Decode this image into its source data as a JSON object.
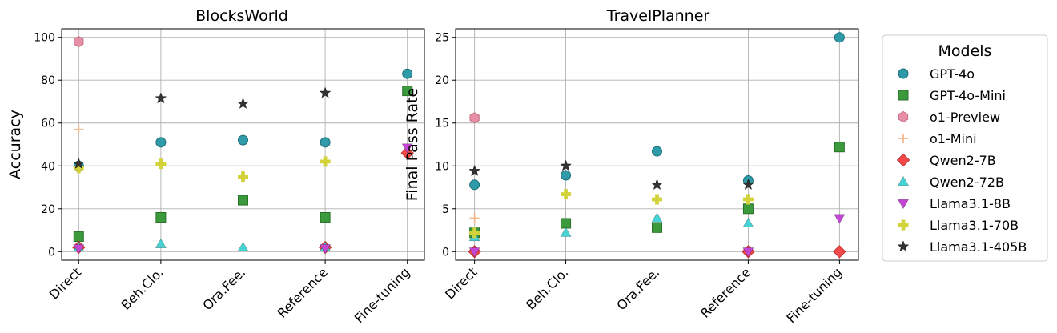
{
  "chart_data": [
    {
      "type": "scatter",
      "title": "BlocksWorld",
      "xlabel": "",
      "ylabel": "Accuracy",
      "categories": [
        "Direct",
        "Beh.Clo.",
        "Ora.Fee.",
        "Reference",
        "Fine-tuning"
      ],
      "ylim": [
        -4,
        104
      ],
      "yticks": [
        0,
        20,
        40,
        60,
        80,
        100
      ],
      "grid": true,
      "series": [
        {
          "name": "GPT-4o",
          "values": [
            40,
            51,
            52,
            51,
            83
          ]
        },
        {
          "name": "GPT-4o-Mini",
          "values": [
            7,
            16,
            24,
            16,
            75
          ]
        },
        {
          "name": "o1-Preview",
          "values": [
            98,
            null,
            null,
            null,
            null
          ]
        },
        {
          "name": "o1-Mini",
          "values": [
            57,
            null,
            null,
            null,
            null
          ]
        },
        {
          "name": "Qwen2-7B",
          "values": [
            2,
            null,
            null,
            2,
            46
          ]
        },
        {
          "name": "Qwen2-72B",
          "values": [
            2,
            3.5,
            2,
            2,
            null
          ]
        },
        {
          "name": "Llama3.1-8B",
          "values": [
            1.5,
            null,
            null,
            1.5,
            48.5
          ]
        },
        {
          "name": "Llama3.1-70B",
          "values": [
            39,
            41,
            35,
            42,
            null
          ]
        },
        {
          "name": "Llama3.1-405B",
          "values": [
            41,
            71.5,
            69,
            74,
            null
          ]
        }
      ]
    },
    {
      "type": "scatter",
      "title": "TravelPlanner",
      "xlabel": "",
      "ylabel": "Final Pass Rate",
      "categories": [
        "Direct",
        "Beh.Clo.",
        "Ora.Fee.",
        "Reference",
        "Fine-tuning"
      ],
      "ylim": [
        -1,
        26
      ],
      "yticks": [
        0,
        5,
        10,
        15,
        20,
        25
      ],
      "grid": true,
      "series": [
        {
          "name": "GPT-4o",
          "values": [
            7.8,
            8.9,
            11.7,
            8.3,
            25
          ]
        },
        {
          "name": "GPT-4o-Mini",
          "values": [
            2.2,
            3.3,
            2.8,
            5,
            12.2
          ]
        },
        {
          "name": "o1-Preview",
          "values": [
            15.6,
            null,
            null,
            null,
            null
          ]
        },
        {
          "name": "o1-Mini",
          "values": [
            3.9,
            null,
            null,
            null,
            null
          ]
        },
        {
          "name": "Qwen2-7B",
          "values": [
            0,
            null,
            null,
            0,
            0
          ]
        },
        {
          "name": "Qwen2-72B",
          "values": [
            1.7,
            2.2,
            3.9,
            3.3,
            null
          ]
        },
        {
          "name": "Llama3.1-8B",
          "values": [
            0,
            null,
            null,
            0,
            3.9
          ]
        },
        {
          "name": "Llama3.1-70B",
          "values": [
            2.2,
            6.7,
            6.1,
            6.1,
            null
          ]
        },
        {
          "name": "Llama3.1-405B",
          "values": [
            9.4,
            10,
            7.8,
            7.8,
            null
          ]
        }
      ]
    }
  ],
  "legend": {
    "title": "Models",
    "placement": "right",
    "items": [
      {
        "name": "GPT-4o",
        "marker": "circle",
        "color": "#2f9aa8"
      },
      {
        "name": "GPT-4o-Mini",
        "marker": "square",
        "color": "#3b9a3b"
      },
      {
        "name": "o1-Preview",
        "marker": "hexagon",
        "color": "#e78fa6"
      },
      {
        "name": "o1-Mini",
        "marker": "plus",
        "color": "#f5b88f"
      },
      {
        "name": "Qwen2-7B",
        "marker": "diamond",
        "color": "#f24a4a"
      },
      {
        "name": "Qwen2-72B",
        "marker": "triangle-up",
        "color": "#45d3d3"
      },
      {
        "name": "Llama3.1-8B",
        "marker": "triangle-down",
        "color": "#c545d4"
      },
      {
        "name": "Llama3.1-70B",
        "marker": "thick-plus",
        "color": "#d2d23a"
      },
      {
        "name": "Llama3.1-405B",
        "marker": "star",
        "color": "#333333"
      }
    ]
  }
}
